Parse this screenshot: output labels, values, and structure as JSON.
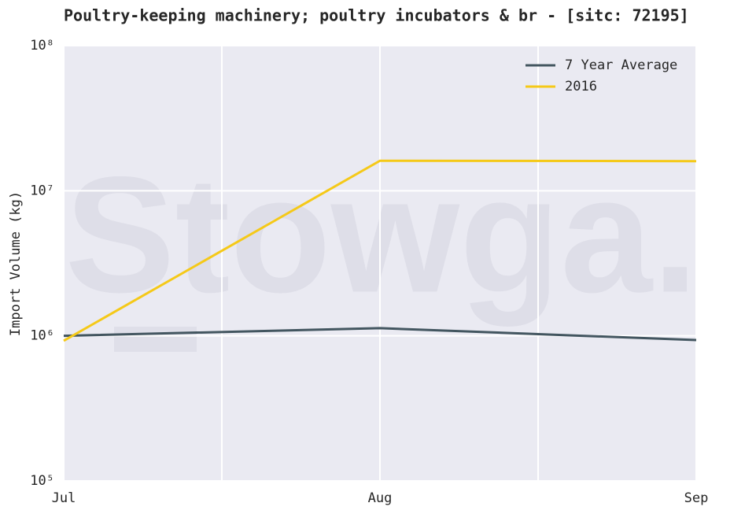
{
  "chart_data": {
    "type": "line",
    "title": "Poultry-keeping machinery; poultry incubators & br - [sitc: 72195]",
    "y_label": "Import Volume (kg)",
    "watermark": "Stowga.",
    "categories": [
      "Jul",
      "Aug",
      "Sep"
    ],
    "series": [
      {
        "name": "7 Year Average",
        "color": "#435660",
        "values": [
          1000000,
          1130000,
          935000
        ]
      },
      {
        "name": "2016",
        "color": "#f5c918",
        "values": [
          925000,
          16100000,
          16000000
        ]
      }
    ],
    "ylim": [
      100000,
      100000000
    ],
    "yticks": [
      {
        "value": 100000,
        "label": "10⁵"
      },
      {
        "value": 1000000,
        "label": "10⁶"
      },
      {
        "value": 10000000,
        "label": "10⁷"
      },
      {
        "value": 100000000,
        "label": "10⁸"
      }
    ],
    "log_y": true,
    "grid": true,
    "legend": "upper right"
  }
}
